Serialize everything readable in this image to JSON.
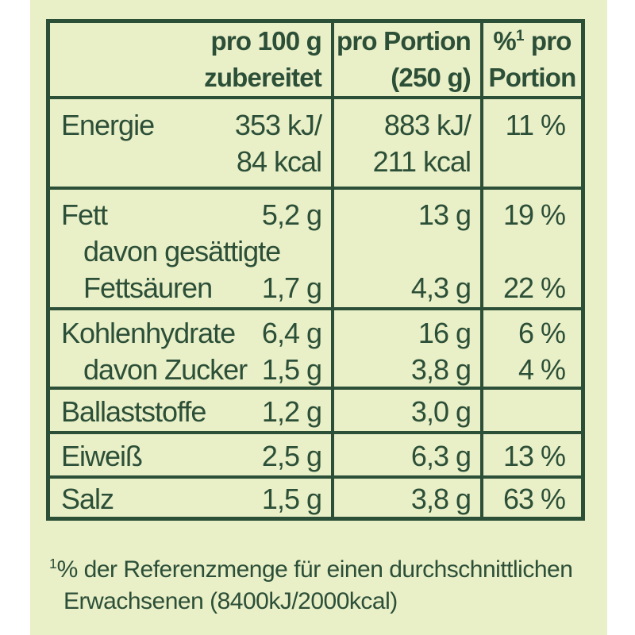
{
  "colors": {
    "page_background": "#ffffff",
    "panel_background": "#e9efc7",
    "ink": "#2c4f38"
  },
  "table": {
    "header": {
      "col1_line1": "pro 100 g",
      "col1_line2": "zubereitet",
      "col2_line1": "pro Portion",
      "col2_line2": "(250 g)",
      "col3_pct_sign": "%",
      "col3_sup": "1",
      "col3_line1_rest": " pro",
      "col3_line2": "Portion"
    },
    "rows": [
      {
        "name": "energie",
        "lines": [
          {
            "label": "Energie",
            "v100": "353 kJ/",
            "portion": "883 kJ/",
            "pct": "11 %"
          },
          {
            "label": "",
            "v100": "84 kcal",
            "portion": "211 kcal",
            "pct": ""
          }
        ]
      },
      {
        "name": "fett",
        "lines": [
          {
            "label": "Fett",
            "v100": "5,2 g",
            "portion": "13 g",
            "pct": "19 %"
          },
          {
            "label": "davon gesättigte",
            "v100": "",
            "portion": "",
            "pct": ""
          },
          {
            "label": "Fettsäuren",
            "v100": "1,7 g",
            "portion": "4,3 g",
            "pct": "22 %"
          }
        ]
      },
      {
        "name": "kohlenhydrate",
        "lines": [
          {
            "label": "Kohlenhydrate",
            "v100": "6,4 g",
            "portion": "16 g",
            "pct": "6 %"
          },
          {
            "label": "davon Zucker",
            "v100": "1,5 g",
            "portion": "3,8 g",
            "pct": "4 %"
          }
        ]
      },
      {
        "name": "ballaststoffe",
        "lines": [
          {
            "label": "Ballaststoffe",
            "v100": "1,2 g",
            "portion": "3,0 g",
            "pct": ""
          }
        ]
      },
      {
        "name": "eiweiss",
        "lines": [
          {
            "label": "Eiweiß",
            "v100": "2,5 g",
            "portion": "6,3 g",
            "pct": "13 %"
          }
        ]
      },
      {
        "name": "salz",
        "lines": [
          {
            "label": "Salz",
            "v100": "1,5 g",
            "portion": "3,8 g",
            "pct": "63 %"
          }
        ]
      }
    ]
  },
  "footnote": {
    "sup": "1",
    "line1": "% der Referenzmenge für einen durchschnittlichen",
    "line2": "Erwachsenen (8400kJ/2000kcal)"
  }
}
